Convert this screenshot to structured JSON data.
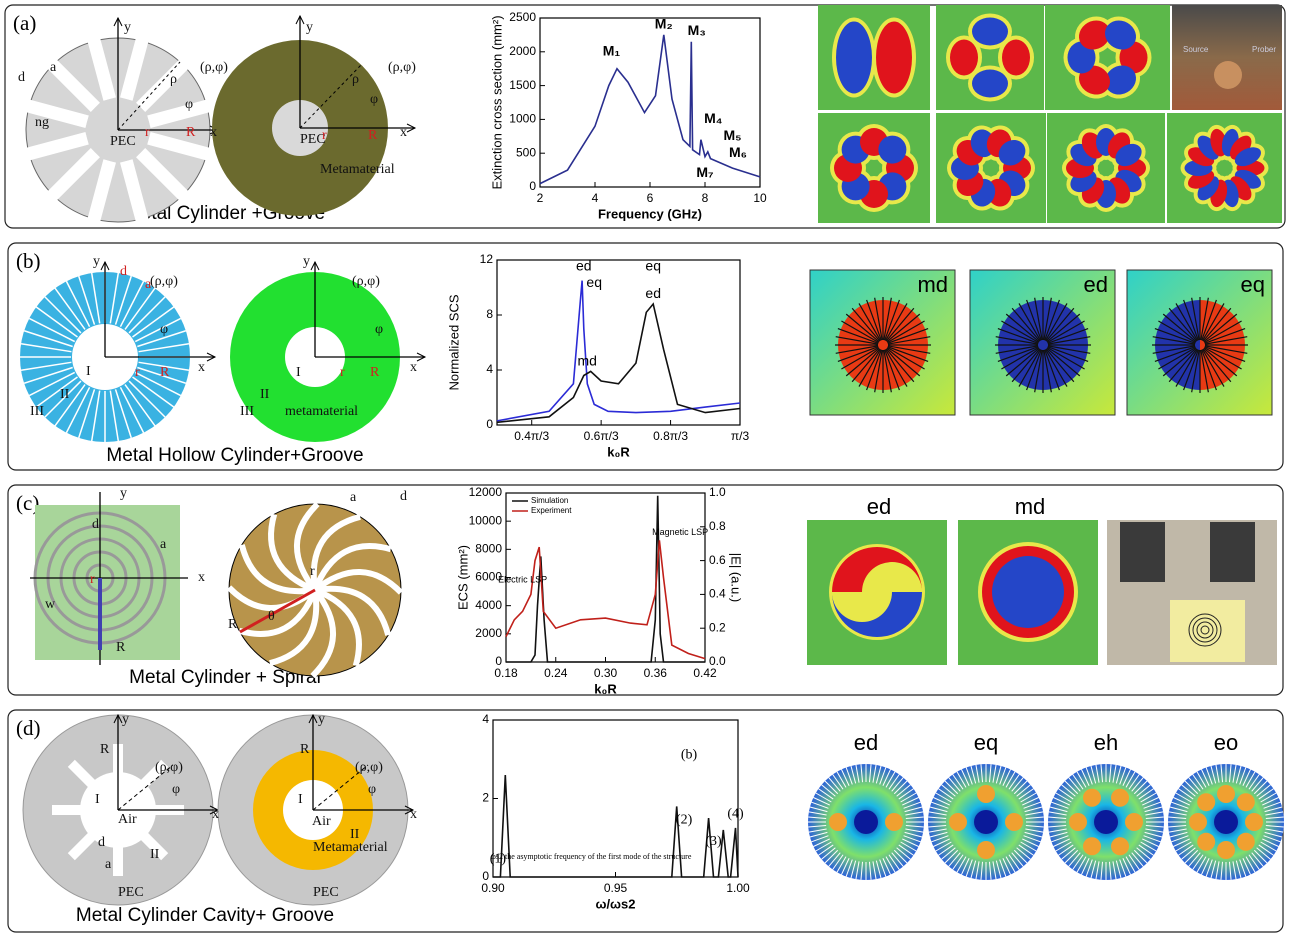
{
  "panels": [
    {
      "label": "(a)",
      "caption": "Metal Cylinder +Groove",
      "diagram_labels": [
        "y",
        "x",
        "(ρ,φ)",
        "ρ",
        "φ",
        "d",
        "a",
        "ng",
        "PEC",
        "r",
        "R",
        "y",
        "x",
        "(ρ,φ)",
        "ρ",
        "φ",
        "PEC",
        "r",
        "R",
        "Metamaterial"
      ],
      "chart": {
        "type": "line",
        "xlabel": "Frequency (GHz)",
        "ylabel": "Extinction cross section (mm²)",
        "xlim": [
          2,
          10
        ],
        "ylim": [
          0,
          2500
        ],
        "xticks": [
          2,
          4,
          6,
          8,
          10
        ],
        "yticks": [
          0,
          500,
          1000,
          1500,
          2000,
          2500
        ],
        "series": [
          {
            "color": "#2a2f8f",
            "x": [
              2,
              3,
              4,
              4.5,
              4.8,
              5.2,
              5.8,
              6.2,
              6.5,
              6.8,
              7.2,
              7.45,
              7.5,
              7.55,
              7.8,
              7.85,
              8,
              8.1,
              8.2,
              9,
              10
            ],
            "values": [
              50,
              250,
              900,
              1500,
              1750,
              1550,
              1100,
              1350,
              2250,
              1300,
              700,
              600,
              2150,
              550,
              480,
              700,
              450,
              520,
              420,
              280,
              150
            ]
          }
        ],
        "annotations": [
          "M₁",
          "M₂",
          "M₃",
          "M₄",
          "M₅",
          "M₆",
          "M₇"
        ]
      },
      "field_labels": [],
      "photo_labels": [
        "Source",
        "Prober"
      ]
    },
    {
      "label": "(b)",
      "caption": "Metal Hollow Cylinder+Groove",
      "diagram_labels": [
        "y",
        "x",
        "d",
        "a",
        "(ρ,φ)",
        "φ",
        "I",
        "II",
        "III",
        "r",
        "R",
        "y",
        "x",
        "(ρ,φ)",
        "φ",
        "I",
        "II",
        "metamaterial",
        "III",
        "r",
        "R"
      ],
      "chart": {
        "type": "line",
        "xlabel": "k₀R",
        "ylabel": "Normalized SCS",
        "xlim": [
          0.3,
          1
        ],
        "ylim": [
          0,
          12
        ],
        "xticks": [
          {
            "value": 0.4,
            "label": "0.4π/3"
          },
          {
            "value": 0.6,
            "label": "0.6π/3"
          },
          {
            "value": 0.8,
            "label": "0.8π/3"
          },
          {
            "value": 1,
            "label": "π/3"
          }
        ],
        "yticks": [
          0,
          4,
          8,
          12
        ],
        "series": [
          {
            "color": "#2b2bd6",
            "x": [
              0.3,
              0.45,
              0.52,
              0.54,
              0.545,
              0.55,
              0.56,
              0.58,
              0.62,
              0.7,
              0.8,
              0.9,
              1.0
            ],
            "values": [
              0.3,
              1.0,
              3,
              9,
              10.5,
              7,
              3,
              1.5,
              1.0,
              0.9,
              1.0,
              1.3,
              1.6
            ]
          },
          {
            "color": "#111111",
            "x": [
              0.3,
              0.45,
              0.52,
              0.55,
              0.57,
              0.6,
              0.65,
              0.7,
              0.73,
              0.75,
              0.78,
              0.82,
              0.9,
              1.0
            ],
            "values": [
              0.2,
              0.6,
              2,
              3.6,
              3.9,
              3.2,
              3.0,
              4.5,
              8.2,
              8.8,
              5.5,
              1.5,
              0.9,
              1.2
            ]
          }
        ],
        "annotations": [
          "ed",
          "eq",
          "md",
          "ed",
          "eq"
        ]
      },
      "field_labels": [
        "md",
        "ed",
        "eq"
      ],
      "photo_labels": []
    },
    {
      "label": "(c)",
      "caption": "Metal Cylinder + Spiral",
      "diagram_labels": [
        "y",
        "x",
        "d",
        "a",
        "w",
        "r",
        "R",
        "a",
        "d",
        "r",
        "R",
        "θ"
      ],
      "chart": {
        "type": "line",
        "xlabel": "k₀R",
        "ylabel": "ECS (mm²)",
        "y2label": "|E| (a.u.)",
        "xlim": [
          0.18,
          0.42
        ],
        "ylim": [
          0,
          12000
        ],
        "y2lim": [
          0,
          1.0
        ],
        "xticks": [
          0.18,
          0.24,
          {
            "value": 0.3,
            "label": "0.30"
          },
          0.36,
          0.42
        ],
        "yticks": [
          0,
          2000,
          4000,
          6000,
          8000,
          10000,
          12000
        ],
        "y2ticks": [
          {
            "value": 0,
            "label": "0.0"
          },
          0.2,
          0.4,
          0.6,
          0.8,
          {
            "value": 1,
            "label": "1.0"
          }
        ],
        "series": [
          {
            "name": "Simulation",
            "color": "#111111",
            "x": [
              0.18,
              0.21,
              0.215,
              0.218,
              0.222,
              0.226,
              0.23,
              0.3,
              0.355,
              0.36,
              0.363,
              0.366,
              0.37,
              0.42
            ],
            "values": [
              0,
              0,
              500,
              4000,
              7500,
              3000,
              0,
              0,
              0,
              3000,
              11800,
              2000,
              0,
              0
            ]
          },
          {
            "name": "Experiment",
            "color": "#c0201a",
            "axis": "y2",
            "x": [
              0.18,
              0.19,
              0.2,
              0.21,
              0.215,
              0.22,
              0.225,
              0.24,
              0.27,
              0.3,
              0.33,
              0.35,
              0.36,
              0.365,
              0.37,
              0.38,
              0.4,
              0.42
            ],
            "values": [
              0.15,
              0.25,
              0.3,
              0.4,
              0.6,
              0.68,
              0.3,
              0.2,
              0.25,
              0.26,
              0.23,
              0.22,
              0.4,
              0.72,
              0.5,
              0.1,
              0.05,
              0.02
            ]
          }
        ],
        "annotations": [
          "Electric LSP",
          "Magnetic LSP"
        ]
      },
      "field_labels": [
        "ed",
        "md"
      ],
      "photo_labels": []
    },
    {
      "label": "(d)",
      "caption": "Metal Cylinder Cavity+ Groove",
      "diagram_labels": [
        "y",
        "x",
        "R",
        "(ρ,φ)",
        "φ",
        "I",
        "Air",
        "II",
        "d",
        "a",
        "PEC",
        "y",
        "x",
        "R",
        "(ρ,φ)",
        "φ",
        "I",
        "Air",
        "II",
        "Metamaterial",
        "PEC"
      ],
      "chart": {
        "type": "line",
        "xlabel": "ω/ωs2",
        "xlim": [
          0.9,
          1
        ],
        "ylim": [
          0,
          4
        ],
        "xticks": [
          {
            "value": 0.9,
            "label": "0.90"
          },
          0.95,
          {
            "value": 1,
            "label": "1.00"
          }
        ],
        "yticks": [
          0,
          2,
          4
        ],
        "series": [
          {
            "color": "#111111",
            "x": [
              0.9,
              0.903,
              0.905,
              0.907,
              0.973,
              0.975,
              0.977,
              0.986,
              0.988,
              0.99,
              0.992,
              0.994,
              0.996,
              0.997,
              0.999,
              1.0
            ],
            "values": [
              0,
              0,
              2.6,
              0,
              0,
              1.8,
              0,
              0,
              1.5,
              0,
              0,
              1.2,
              0,
              0,
              1.25,
              0
            ]
          }
        ],
        "annotations": [
          "(1)",
          "(2)",
          "(3)",
          "(4)",
          "(b)",
          "ωs2 the asymptotic frequency of the first mode of the structure"
        ]
      },
      "field_labels": [
        "ed",
        "eq",
        "eh",
        "eo"
      ],
      "photo_labels": []
    }
  ]
}
